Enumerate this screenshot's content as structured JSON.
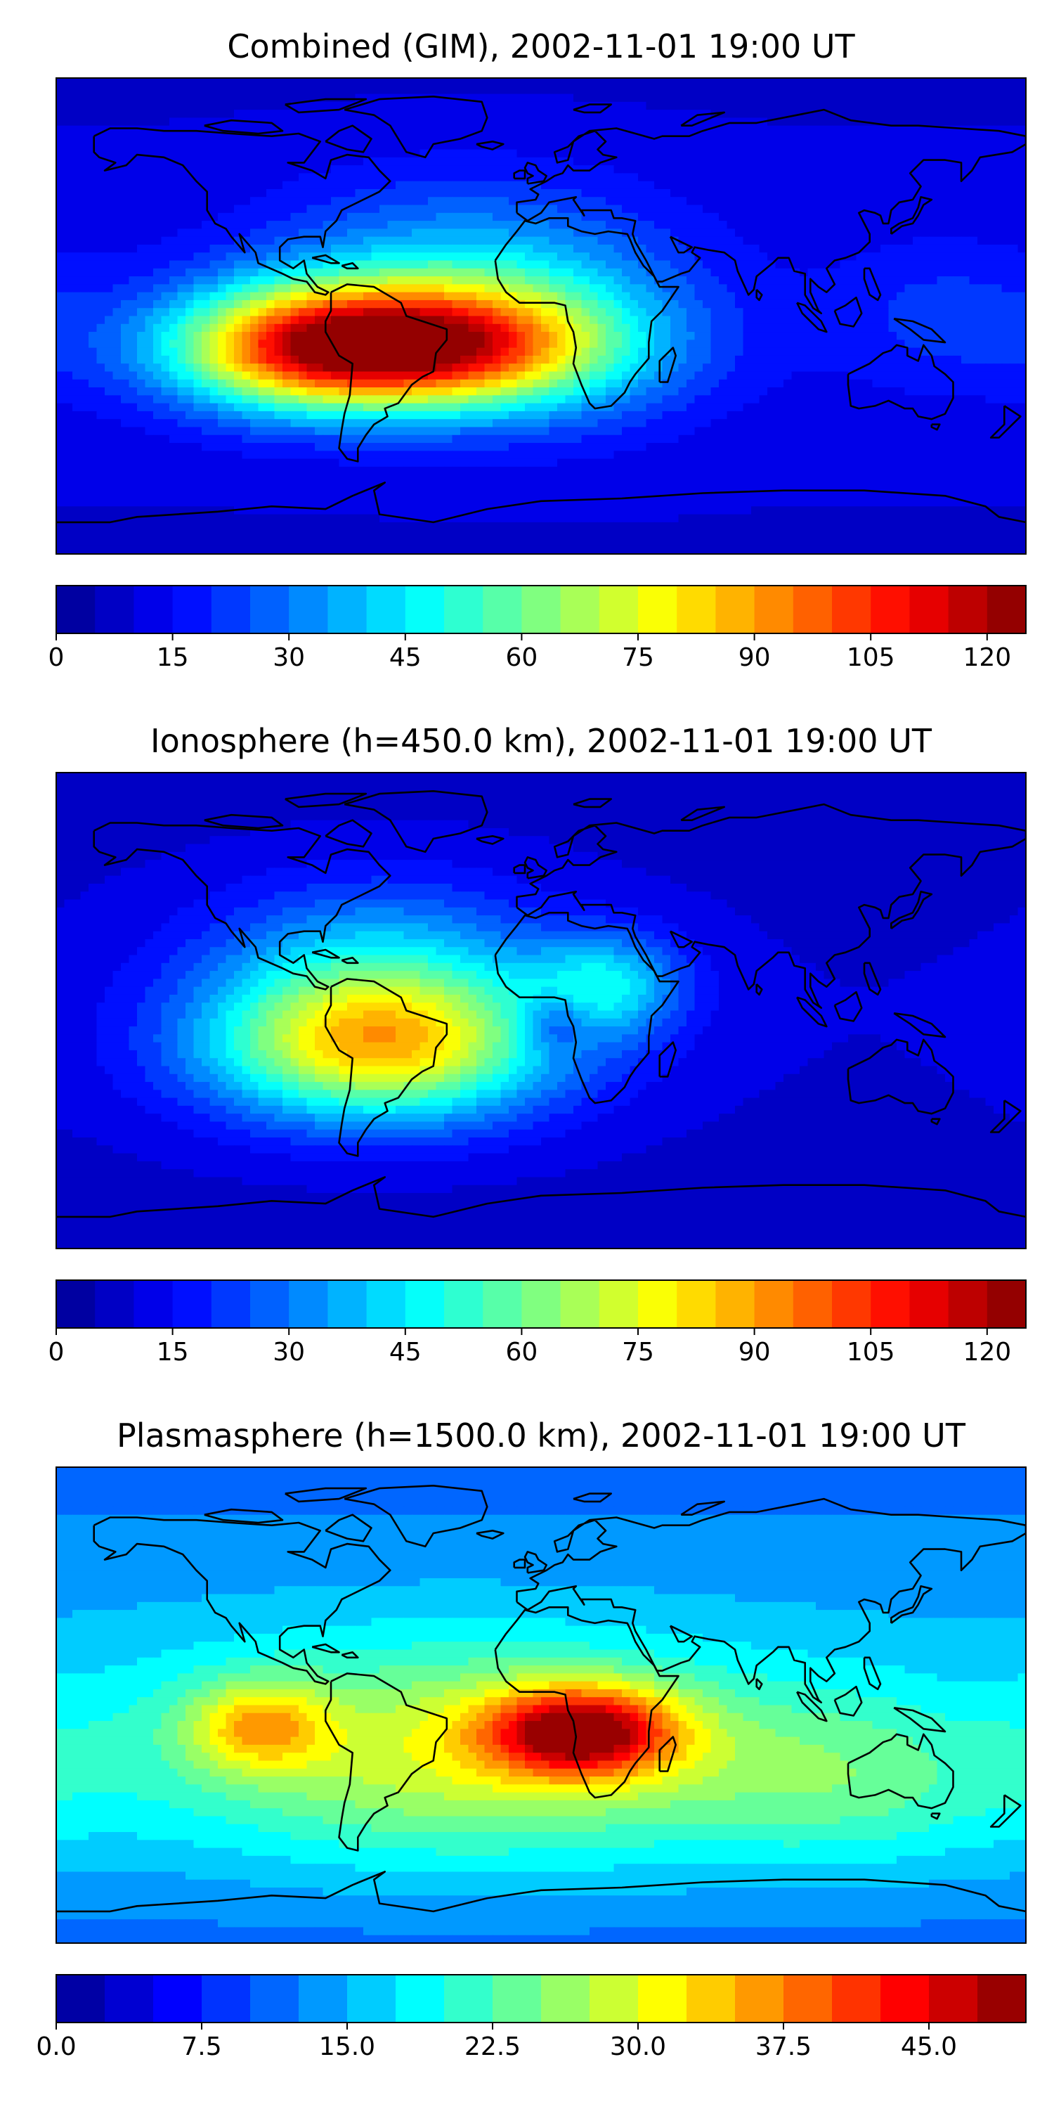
{
  "panels": [
    {
      "title": "Combined (GIM), 2002-11-01 19:00 UT",
      "colorbar": {
        "min": 0,
        "max": 125,
        "levels": 25,
        "ticks": [
          0,
          15,
          30,
          45,
          60,
          75,
          90,
          105,
          120
        ],
        "tick_labels": [
          "0",
          "15",
          "30",
          "45",
          "60",
          "75",
          "90",
          "105",
          "120"
        ]
      },
      "features": [
        {
          "lon": -55,
          "lat": -12,
          "amp": 100,
          "slon": 50,
          "slat": 16
        },
        {
          "lon": -95,
          "lat": -12,
          "amp": 25,
          "slon": 30,
          "slat": 18
        },
        {
          "lon": -40,
          "lat": 10,
          "amp": 25,
          "slon": 45,
          "slat": 28
        },
        {
          "lon": 10,
          "lat": 0,
          "amp": 15,
          "slon": 40,
          "slat": 30
        },
        {
          "lon": 150,
          "lat": 0,
          "amp": 10,
          "slon": 30,
          "slat": 20
        }
      ],
      "base": 12
    },
    {
      "title": "Ionosphere  (h=450.0 km), 2002-11-01 19:00 UT",
      "colorbar": {
        "min": 0,
        "max": 125,
        "levels": 25,
        "ticks": [
          0,
          15,
          30,
          45,
          60,
          75,
          90,
          105,
          120
        ],
        "tick_labels": [
          "0",
          "15",
          "30",
          "45",
          "60",
          "75",
          "90",
          "105",
          "120"
        ]
      },
      "features": [
        {
          "lon": -60,
          "lat": -15,
          "amp": 65,
          "slon": 45,
          "slat": 20
        },
        {
          "lon": -60,
          "lat": 15,
          "amp": 30,
          "slon": 45,
          "slat": 25
        },
        {
          "lon": 25,
          "lat": 10,
          "amp": 30,
          "slon": 20,
          "slat": 14
        },
        {
          "lon": 5,
          "lat": -5,
          "amp": -18,
          "slon": 10,
          "slat": 8
        }
      ],
      "base": 10
    },
    {
      "title": "Plasmasphere (h=1500.0 km), 2002-11-01 19:00 UT",
      "colorbar": {
        "min": 0,
        "max": 50,
        "levels": 20,
        "ticks": [
          0,
          7.5,
          15,
          22.5,
          30,
          37.5,
          45
        ],
        "tick_labels": [
          "0.0",
          "7.5",
          "15.0",
          "22.5",
          "30.0",
          "37.5",
          "45.0"
        ]
      },
      "features": [
        {
          "lon": 15,
          "lat": -10,
          "amp": 27,
          "slon": 25,
          "slat": 12
        },
        {
          "lon": -105,
          "lat": -8,
          "amp": 13,
          "slon": 18,
          "slat": 12
        },
        {
          "lon": -30,
          "lat": -20,
          "amp": 15,
          "slon": 80,
          "slat": 30
        },
        {
          "lon": 120,
          "lat": -30,
          "amp": 8,
          "slon": 50,
          "slat": 25
        }
      ],
      "base": 15
    }
  ],
  "colors": {
    "jet_map": [
      "#00008f",
      "#0000ff",
      "#0080ff",
      "#00ffff",
      "#80ff80",
      "#ffff00",
      "#ff8000",
      "#ff0000",
      "#800000"
    ]
  }
}
